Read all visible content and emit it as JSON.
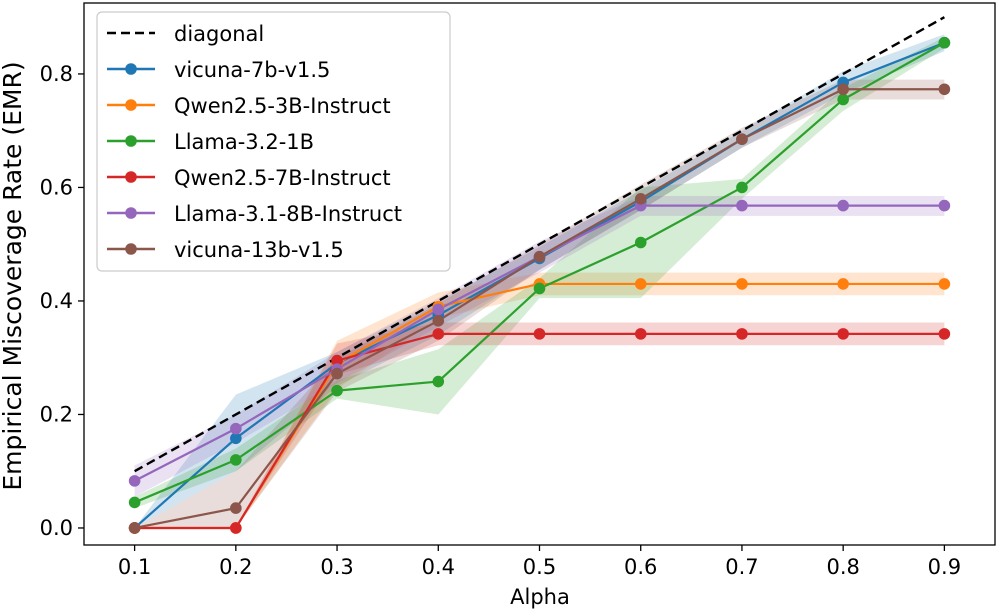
{
  "chart_data": {
    "type": "line",
    "xlabel": "Alpha",
    "ylabel": "Empirical Miscoverage Rate (EMR)",
    "x": [
      0.1,
      0.2,
      0.3,
      0.4,
      0.5,
      0.6,
      0.7,
      0.8,
      0.9
    ],
    "xlim": [
      0.05,
      0.95
    ],
    "ylim": [
      -0.03,
      0.925
    ],
    "xticks": [
      "0.1",
      "0.2",
      "0.3",
      "0.4",
      "0.5",
      "0.6",
      "0.7",
      "0.8",
      "0.9"
    ],
    "yticks": [
      "0.0",
      "0.2",
      "0.4",
      "0.6",
      "0.8"
    ],
    "legend_position": "top-left",
    "grid": false,
    "diagonal": {
      "name": "diagonal",
      "color": "#000000",
      "x": [
        0.1,
        0.9
      ],
      "y": [
        0.1,
        0.9
      ]
    },
    "series": [
      {
        "name": "vicuna-7b-v1.5",
        "color": "#1f77b4",
        "values": [
          0.0,
          0.158,
          0.29,
          0.375,
          0.475,
          0.575,
          0.685,
          0.785,
          0.855
        ],
        "lower": [
          0.0,
          0.1,
          0.25,
          0.34,
          0.455,
          0.56,
          0.67,
          0.765,
          0.84
        ],
        "upper": [
          0.0,
          0.235,
          0.31,
          0.4,
          0.495,
          0.595,
          0.7,
          0.805,
          0.87
        ]
      },
      {
        "name": "Qwen2.5-3B-Instruct",
        "color": "#ff7f0e",
        "values": [
          0.0,
          0.0,
          0.29,
          0.39,
          0.43,
          0.43,
          0.43,
          0.43,
          0.43
        ],
        "lower": [
          0.0,
          0.0,
          0.245,
          0.37,
          0.41,
          0.41,
          0.41,
          0.41,
          0.41
        ],
        "upper": [
          0.0,
          0.0,
          0.33,
          0.415,
          0.45,
          0.45,
          0.45,
          0.45,
          0.45
        ]
      },
      {
        "name": "Llama-3.2-1B",
        "color": "#2ca02c",
        "values": [
          0.045,
          0.12,
          0.242,
          0.258,
          0.422,
          0.503,
          0.6,
          0.755,
          0.855
        ],
        "lower": [
          0.035,
          0.1,
          0.228,
          0.2,
          0.405,
          0.405,
          0.58,
          0.735,
          0.845
        ],
        "upper": [
          0.055,
          0.14,
          0.26,
          0.315,
          0.44,
          0.6,
          0.615,
          0.775,
          0.865
        ]
      },
      {
        "name": "Qwen2.5-7B-Instruct",
        "color": "#d62728",
        "values": [
          0.0,
          0.0,
          0.295,
          0.342,
          0.342,
          0.342,
          0.342,
          0.342,
          0.342
        ],
        "lower": [
          0.0,
          0.0,
          0.27,
          0.322,
          0.322,
          0.322,
          0.322,
          0.322,
          0.322
        ],
        "upper": [
          0.0,
          0.0,
          0.325,
          0.362,
          0.362,
          0.362,
          0.362,
          0.362,
          0.362
        ]
      },
      {
        "name": "Llama-3.1-8B-Instruct",
        "color": "#9467bd",
        "values": [
          0.083,
          0.175,
          0.28,
          0.385,
          0.478,
          0.568,
          0.568,
          0.568,
          0.568
        ],
        "lower": [
          0.055,
          0.15,
          0.255,
          0.355,
          0.45,
          0.55,
          0.55,
          0.55,
          0.55
        ],
        "upper": [
          0.11,
          0.2,
          0.31,
          0.405,
          0.505,
          0.585,
          0.585,
          0.585,
          0.585
        ]
      },
      {
        "name": "vicuna-13b-v1.5",
        "color": "#8c564b",
        "values": [
          0.0,
          0.035,
          0.272,
          0.365,
          0.478,
          0.58,
          0.685,
          0.773,
          0.773
        ],
        "lower": [
          0.0,
          0.0,
          0.24,
          0.33,
          0.455,
          0.56,
          0.67,
          0.755,
          0.755
        ],
        "upper": [
          0.0,
          0.1,
          0.3,
          0.395,
          0.5,
          0.605,
          0.705,
          0.79,
          0.79
        ]
      }
    ]
  }
}
